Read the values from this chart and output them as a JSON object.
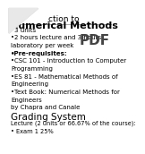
{
  "title_line1": "ction to",
  "title_line2": "Numerical Methods",
  "body_lines": [
    "•3 units",
    "•2 hours lecture and 3 hours",
    "laboratory per week",
    "•Pre-requisites:",
    "•CSC 101 - Introduction to Computer",
    "Programming",
    "•ES 81 - Mathematical Methods of",
    "Engineering",
    "•Text Book: Numerical Methods for",
    "Engineers",
    "by Chapra and Canale"
  ],
  "grading_title": "Grading System",
  "grading_lines": [
    "Lecture (2 units or 66.67% of the course):",
    "• Exam 1 25%"
  ],
  "bg_color": "#ffffff",
  "text_color": "#000000",
  "title_color": "#000000",
  "body_fontsize": 5.0,
  "title1_fontsize": 6.5,
  "title2_fontsize": 8.0,
  "grading_title_fontsize": 7.5,
  "grading_body_fontsize": 4.8,
  "corner_color": "#cccccc",
  "corner_inner_color": "#e8e8e8",
  "line_color": "#888888",
  "pdf_bg": "#e0e0e0",
  "pdf_text_color": "#444444"
}
